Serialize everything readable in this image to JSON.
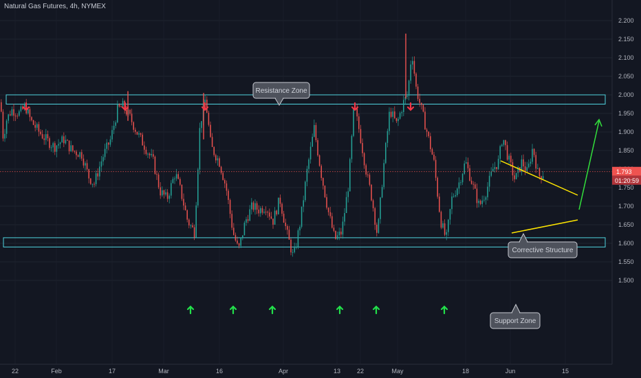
{
  "header": {
    "title": "Natural Gas Futures, 4h, NYMEX"
  },
  "colors": {
    "background": "#131722",
    "zone": "#4fd3df",
    "up": "#26a69a",
    "down": "#ef5350",
    "resistance_arrow": "#f23645",
    "support_arrow": "#22e04a",
    "triangle": "#ffe600",
    "projection": "#33e13c",
    "price_line": "#ef5350",
    "axis_text": "#b2b5be"
  },
  "price_badge": {
    "price": "1.793",
    "countdown": "01:20:59"
  },
  "chart_data": {
    "type": "candlestick",
    "title": "Natural Gas Futures, 4h, NYMEX",
    "ylim": [
      1.48,
      2.23
    ],
    "y_ticks": [
      "2.200",
      "2.150",
      "2.100",
      "2.050",
      "2.000",
      "1.950",
      "1.900",
      "1.850",
      "1.800",
      "1.750",
      "1.700",
      "1.650",
      "1.600",
      "1.550",
      "1.500"
    ],
    "x_ticks": [
      "22",
      "Feb",
      "17",
      "Mar",
      "16",
      "Apr",
      "13",
      "22",
      "May",
      "18",
      "Jun",
      "15"
    ],
    "last_price": 1.793,
    "zones": [
      {
        "label": "Resistance Zone",
        "low": 1.975,
        "high": 2.0
      },
      {
        "label": "Support Zone",
        "low": 1.59,
        "high": 1.615
      }
    ],
    "pattern_label": "Corrective Structure",
    "path": [
      [
        0,
        1.98
      ],
      [
        4,
        1.88
      ],
      [
        8,
        1.93
      ],
      [
        16,
        1.96
      ],
      [
        28,
        1.95
      ],
      [
        36,
        1.97
      ],
      [
        44,
        1.93
      ],
      [
        56,
        1.9
      ],
      [
        66,
        1.88
      ],
      [
        78,
        1.86
      ],
      [
        92,
        1.88
      ],
      [
        104,
        1.85
      ],
      [
        118,
        1.84
      ],
      [
        128,
        1.78
      ],
      [
        136,
        1.76
      ],
      [
        148,
        1.83
      ],
      [
        160,
        1.88
      ],
      [
        170,
        1.96
      ],
      [
        178,
        1.97
      ],
      [
        188,
        1.94
      ],
      [
        198,
        1.9
      ],
      [
        210,
        1.86
      ],
      [
        222,
        1.82
      ],
      [
        232,
        1.74
      ],
      [
        242,
        1.72
      ],
      [
        254,
        1.79
      ],
      [
        262,
        1.74
      ],
      [
        272,
        1.66
      ],
      [
        282,
        1.63
      ],
      [
        290,
        1.92
      ],
      [
        298,
        1.99
      ],
      [
        306,
        1.86
      ],
      [
        318,
        1.82
      ],
      [
        328,
        1.75
      ],
      [
        338,
        1.63
      ],
      [
        346,
        1.58
      ],
      [
        356,
        1.66
      ],
      [
        366,
        1.7
      ],
      [
        376,
        1.69
      ],
      [
        386,
        1.7
      ],
      [
        396,
        1.66
      ],
      [
        406,
        1.72
      ],
      [
        416,
        1.63
      ],
      [
        426,
        1.56
      ],
      [
        436,
        1.66
      ],
      [
        446,
        1.8
      ],
      [
        456,
        1.91
      ],
      [
        466,
        1.79
      ],
      [
        476,
        1.69
      ],
      [
        486,
        1.61
      ],
      [
        496,
        1.63
      ],
      [
        506,
        1.76
      ],
      [
        514,
        1.97
      ],
      [
        522,
        1.9
      ],
      [
        532,
        1.79
      ],
      [
        540,
        1.72
      ],
      [
        548,
        1.62
      ],
      [
        556,
        1.79
      ],
      [
        566,
        1.96
      ],
      [
        576,
        1.92
      ],
      [
        586,
        1.98
      ],
      [
        592,
        2.0
      ],
      [
        598,
        2.12
      ],
      [
        604,
        2.02
      ],
      [
        612,
        1.96
      ],
      [
        620,
        1.9
      ],
      [
        630,
        1.82
      ],
      [
        640,
        1.66
      ],
      [
        648,
        1.61
      ],
      [
        656,
        1.72
      ],
      [
        666,
        1.76
      ],
      [
        676,
        1.82
      ],
      [
        686,
        1.76
      ],
      [
        696,
        1.7
      ],
      [
        706,
        1.74
      ],
      [
        716,
        1.8
      ],
      [
        724,
        1.82
      ],
      [
        730,
        1.89
      ],
      [
        738,
        1.83
      ],
      [
        748,
        1.77
      ],
      [
        758,
        1.82
      ],
      [
        766,
        1.79
      ],
      [
        774,
        1.86
      ],
      [
        782,
        1.78
      ],
      [
        790,
        1.79
      ]
    ]
  }
}
